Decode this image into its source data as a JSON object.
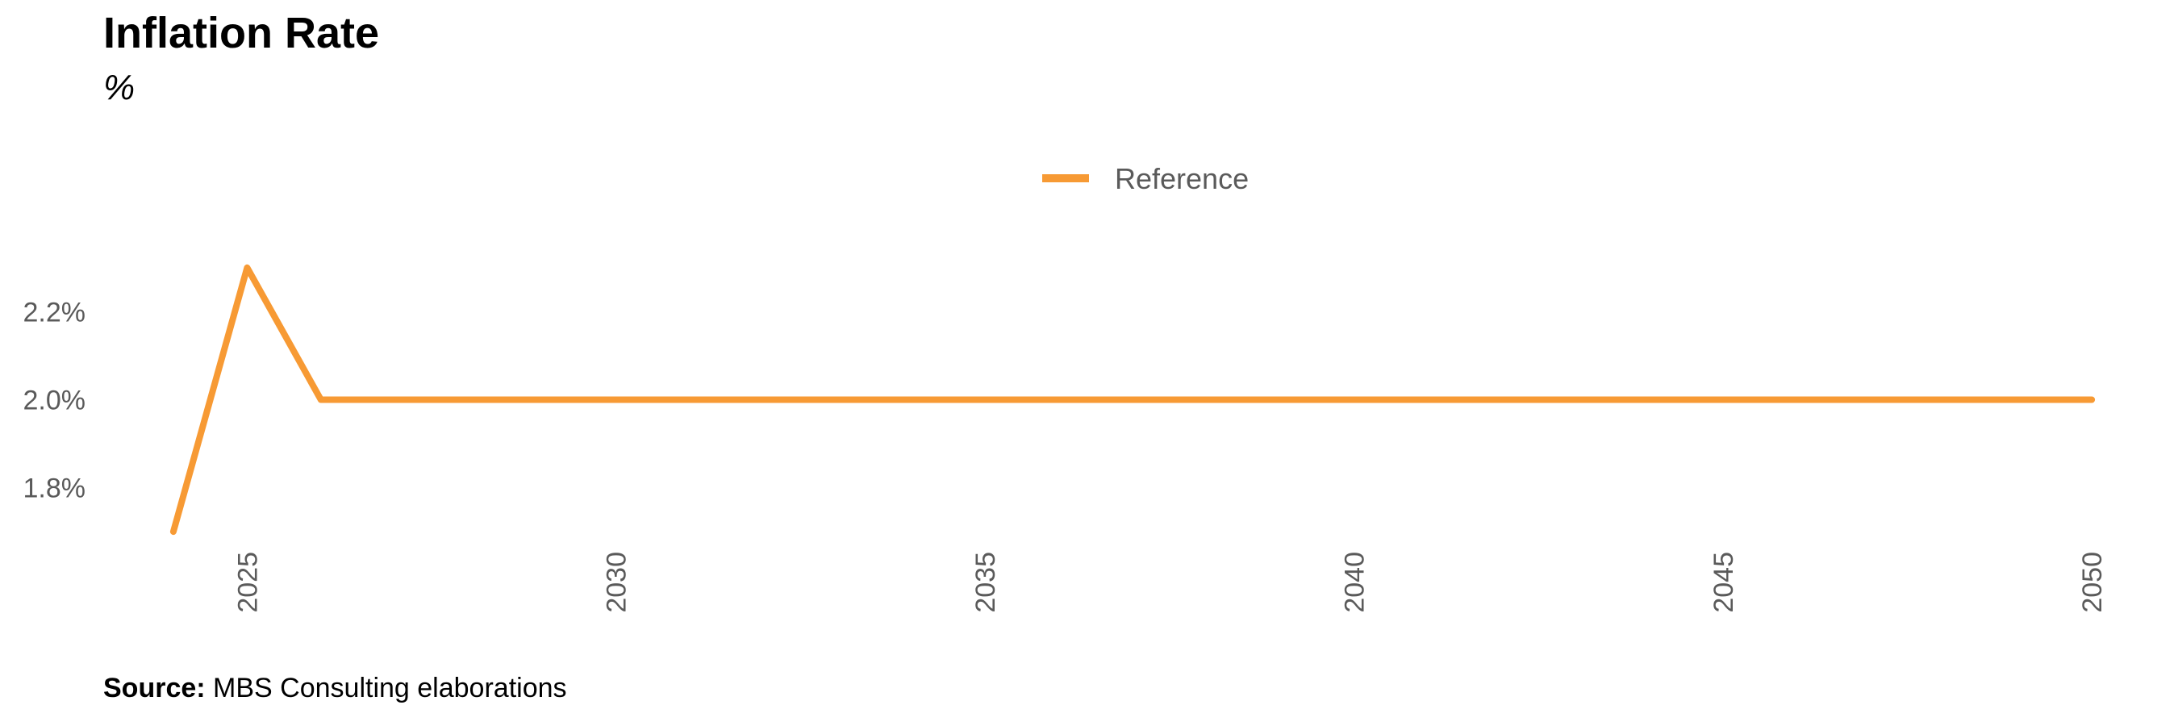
{
  "chart_data": {
    "type": "line",
    "title": "Inflation Rate",
    "subtitle": "%",
    "xlabel": "",
    "ylabel": "",
    "x": [
      2024,
      2025,
      2026,
      2027,
      2028,
      2029,
      2030,
      2031,
      2032,
      2033,
      2034,
      2035,
      2036,
      2037,
      2038,
      2039,
      2040,
      2041,
      2042,
      2043,
      2044,
      2045,
      2046,
      2047,
      2048,
      2049,
      2050
    ],
    "series": [
      {
        "name": "Reference",
        "color": "#F79A34",
        "values": [
          1.7,
          2.3,
          2.0,
          2.0,
          2.0,
          2.0,
          2.0,
          2.0,
          2.0,
          2.0,
          2.0,
          2.0,
          2.0,
          2.0,
          2.0,
          2.0,
          2.0,
          2.0,
          2.0,
          2.0,
          2.0,
          2.0,
          2.0,
          2.0,
          2.0,
          2.0,
          2.0
        ]
      }
    ],
    "x_ticks": [
      2025,
      2030,
      2035,
      2040,
      2045,
      2050
    ],
    "y_ticks": [
      {
        "value": 1.8,
        "label": "1.8%"
      },
      {
        "value": 2.0,
        "label": "2.0%"
      },
      {
        "value": 2.2,
        "label": "2.2%"
      }
    ],
    "xlim": [
      2023.05,
      2050.95
    ],
    "ylim": [
      1.68,
      2.34
    ],
    "grid": false,
    "legend_position": "top-center"
  },
  "source": {
    "label": "Source:",
    "text": "MBS Consulting elaborations"
  }
}
